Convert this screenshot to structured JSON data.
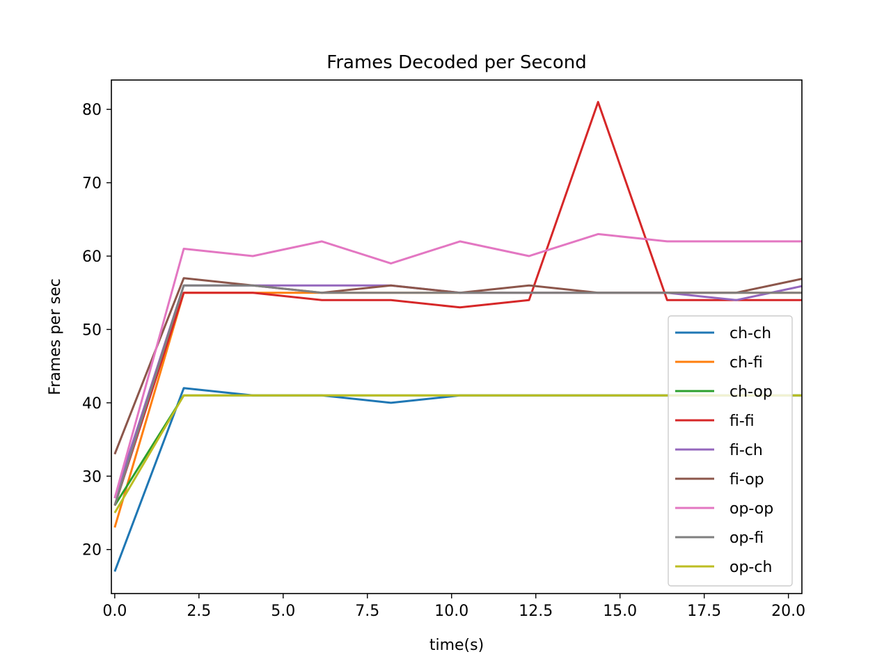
{
  "chart_data": {
    "type": "line",
    "title": "Frames Decoded per Second",
    "xlabel": "time(s)",
    "ylabel": "Frames per sec",
    "xlim": [
      -0.1,
      20.4
    ],
    "ylim": [
      14,
      84
    ],
    "xticks": [
      0.0,
      2.5,
      5.0,
      7.5,
      10.0,
      12.5,
      15.0,
      17.5,
      20.0
    ],
    "xtick_labels": [
      "0.0",
      "2.5",
      "5.0",
      "7.5",
      "10.0",
      "12.5",
      "15.0",
      "17.5",
      "20.0"
    ],
    "yticks": [
      20,
      30,
      40,
      50,
      60,
      70,
      80
    ],
    "ytick_labels": [
      "20",
      "30",
      "40",
      "50",
      "60",
      "70",
      "80"
    ],
    "grid": false,
    "legend_position": "lower-right",
    "x": [
      0.0,
      2.05,
      4.1,
      6.15,
      8.2,
      10.25,
      12.3,
      14.35,
      16.4,
      18.45,
      20.5
    ],
    "series": [
      {
        "name": "ch-ch",
        "color": "#1f77b4",
        "values": [
          17,
          42,
          41,
          41,
          40,
          41,
          41,
          41,
          41,
          41,
          41
        ]
      },
      {
        "name": "ch-fi",
        "color": "#ff7f0e",
        "values": [
          23,
          55,
          55,
          55,
          55,
          55,
          55,
          55,
          55,
          55,
          55
        ]
      },
      {
        "name": "ch-op",
        "color": "#2ca02c",
        "values": [
          26,
          41,
          41,
          41,
          41,
          41,
          41,
          41,
          41,
          41,
          41
        ]
      },
      {
        "name": "fi-fi",
        "color": "#d62728",
        "values": [
          26,
          55,
          55,
          54,
          54,
          53,
          54,
          81,
          54,
          54,
          54
        ]
      },
      {
        "name": "fi-ch",
        "color": "#9467bd",
        "values": [
          27,
          56,
          56,
          56,
          56,
          55,
          55,
          55,
          55,
          54,
          56
        ]
      },
      {
        "name": "fi-op",
        "color": "#8c564b",
        "values": [
          33,
          57,
          56,
          55,
          56,
          55,
          56,
          55,
          55,
          55,
          57
        ]
      },
      {
        "name": "op-op",
        "color": "#e377c2",
        "values": [
          27,
          61,
          60,
          62,
          59,
          62,
          60,
          63,
          62,
          62,
          62
        ]
      },
      {
        "name": "op-fi",
        "color": "#7f7f7f",
        "values": [
          26,
          56,
          56,
          55,
          55,
          55,
          55,
          55,
          55,
          55,
          55
        ]
      },
      {
        "name": "op-ch",
        "color": "#bcbd22",
        "values": [
          25,
          41,
          41,
          41,
          41,
          41,
          41,
          41,
          41,
          41,
          41
        ]
      }
    ]
  }
}
